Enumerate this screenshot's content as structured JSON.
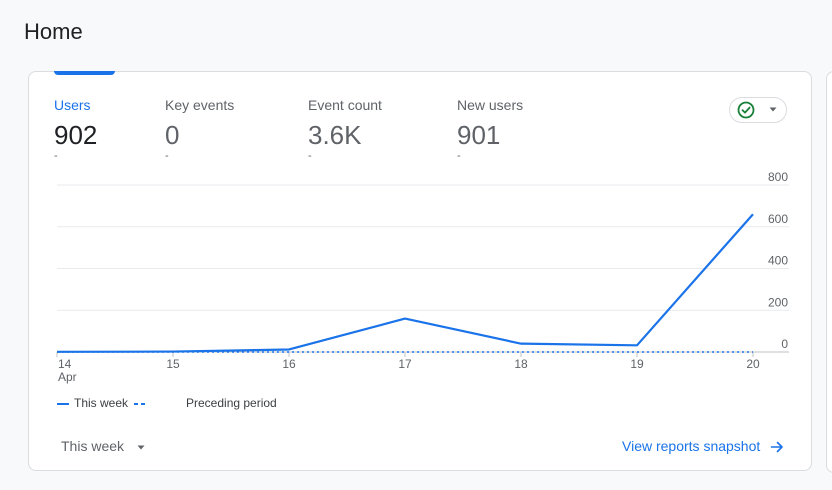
{
  "page": {
    "title": "Home"
  },
  "metrics": [
    {
      "label": "Users",
      "value": "902",
      "delta": "-"
    },
    {
      "label": "Key events",
      "value": "0",
      "delta": "-"
    },
    {
      "label": "Event count",
      "value": "3.6K",
      "delta": "-"
    },
    {
      "label": "New users",
      "value": "901",
      "delta": "-"
    }
  ],
  "status": {
    "icon": "check-circle-icon",
    "color": "#188038"
  },
  "colors": {
    "accent": "#1a73e8",
    "grid": "#e8eaed",
    "text_secondary": "#5f6368"
  },
  "chart_data": {
    "type": "line",
    "categories": [
      "14",
      "15",
      "16",
      "17",
      "18",
      "19",
      "20"
    ],
    "first_tick_sublabel": "Apr",
    "y_ticks": [
      0,
      200,
      400,
      600,
      800
    ],
    "ylim": [
      0,
      800
    ],
    "series": [
      {
        "name": "This week",
        "style": "solid",
        "values": [
          1,
          2,
          12,
          160,
          40,
          32,
          660
        ]
      },
      {
        "name": "Preceding period",
        "style": "dashed",
        "values": [
          0,
          0,
          0,
          0,
          0,
          0,
          0
        ]
      }
    ]
  },
  "footer": {
    "range_label": "This week",
    "link_label": "View reports snapshot"
  }
}
